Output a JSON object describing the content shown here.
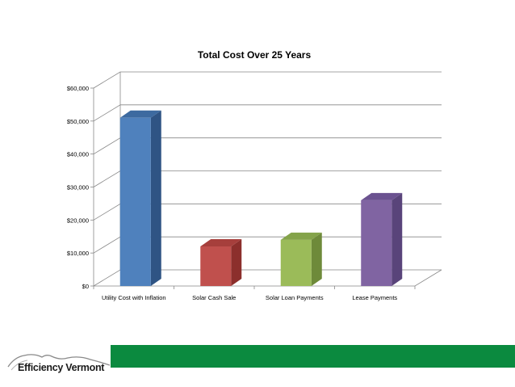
{
  "chart_data": {
    "type": "bar",
    "title": "Total Cost Over 25 Years",
    "categories": [
      "Utility Cost with Inflation",
      "Solar Cash Sale",
      "Solar Loan Payments",
      "Lease Payments"
    ],
    "values": [
      51000,
      12000,
      14000,
      26000
    ],
    "y_tick_labels": [
      "$0",
      "$10,000",
      "$20,000",
      "$30,000",
      "$40,000",
      "$50,000",
      "$60,000"
    ],
    "ylim": [
      0,
      60000
    ],
    "grid": true,
    "legend": "none",
    "colors": {
      "front": [
        "#4f81bd",
        "#c0504d",
        "#9bbb59",
        "#8064a2"
      ],
      "side": [
        "#2f5484",
        "#8c2f2c",
        "#6e8a3a",
        "#59447a"
      ],
      "top": [
        "#3d6aa0",
        "#a63f3c",
        "#84a34a",
        "#6b5290"
      ]
    }
  },
  "footer": {
    "brand": "Efficiency Vermont",
    "accent_color": "#0b8a3f"
  }
}
